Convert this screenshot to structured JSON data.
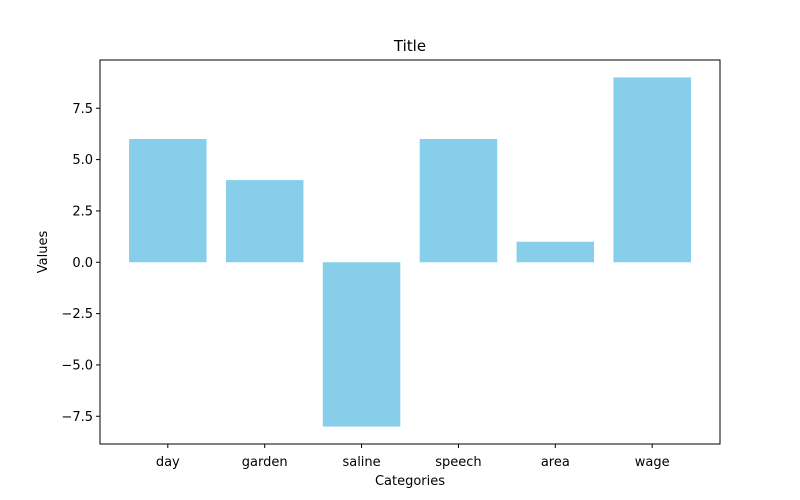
{
  "chart_data": {
    "type": "bar",
    "title": "Title",
    "xlabel": "Categories",
    "ylabel": "Values",
    "categories": [
      "day",
      "garden",
      "saline",
      "speech",
      "area",
      "wage"
    ],
    "values": [
      6,
      4,
      -8,
      6,
      1,
      9
    ],
    "ylim": [
      -8.85,
      9.85
    ],
    "yticks": [
      -7.5,
      -5.0,
      -2.5,
      0.0,
      2.5,
      5.0,
      7.5
    ],
    "ytick_labels": [
      "−7.5",
      "−5.0",
      "−2.5",
      "0.0",
      "2.5",
      "5.0",
      "7.5"
    ],
    "bar_color": "#87ceeb",
    "grid": false,
    "legend": "none"
  }
}
